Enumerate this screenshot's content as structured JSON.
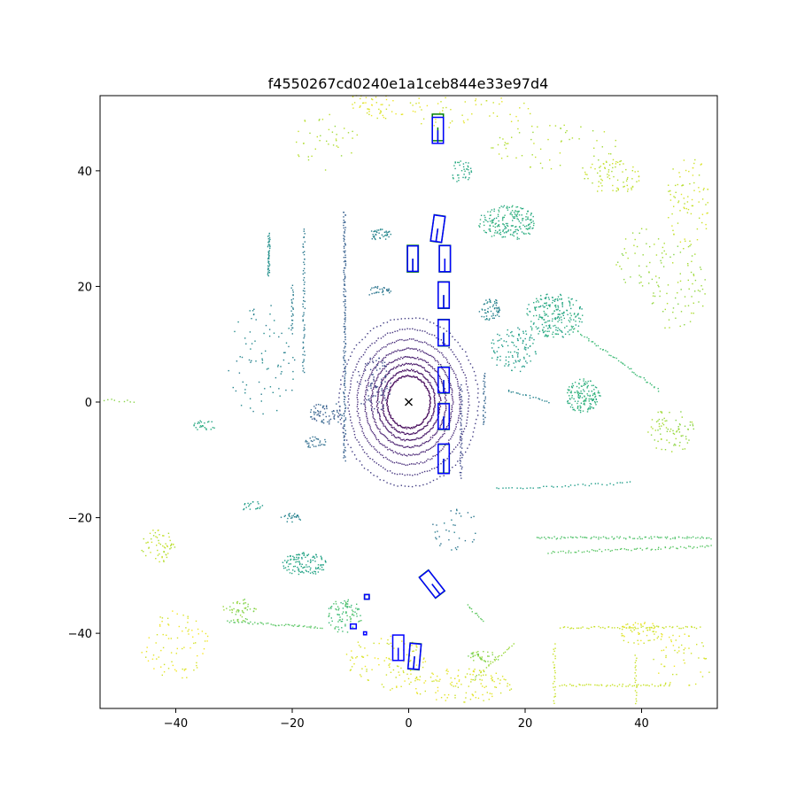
{
  "chart_data": {
    "type": "scatter",
    "title": "f4550267cd0240e1a1ceb844e33e97d4",
    "xlim": [
      -53,
      53
    ],
    "ylim": [
      -53,
      53
    ],
    "x_ticks": [
      -40,
      -20,
      0,
      20,
      40
    ],
    "y_ticks": [
      -40,
      -20,
      0,
      20,
      40
    ],
    "x_tick_labels": [
      "−40",
      "−20",
      "0",
      "20",
      "40"
    ],
    "y_tick_labels": [
      "−40",
      "−20",
      "0",
      "20",
      "40"
    ],
    "grid": false,
    "colormap": "viridis",
    "colors": {
      "gt_box": "#008000",
      "pred_box": "#0000ff",
      "ego": "#000000",
      "axes": "#000000"
    },
    "ego_marker": {
      "x": 0,
      "y": 0,
      "symbol": "x"
    },
    "ground_truth_boxes": [
      {
        "x": 5.0,
        "y": 47.5,
        "w": 1.9,
        "l": 4.6,
        "yaw_deg": 0
      },
      {
        "x": 5.0,
        "y": 30.0,
        "w": 1.9,
        "l": 4.6,
        "yaw_deg": -8
      },
      {
        "x": 6.2,
        "y": 24.8,
        "w": 1.9,
        "l": 4.6,
        "yaw_deg": 0
      },
      {
        "x": 0.7,
        "y": 24.8,
        "w": 1.9,
        "l": 4.6,
        "yaw_deg": 0
      },
      {
        "x": 6.0,
        "y": 18.5,
        "w": 1.9,
        "l": 4.6,
        "yaw_deg": 0
      },
      {
        "x": 6.0,
        "y": 12.0,
        "w": 1.9,
        "l": 4.6,
        "yaw_deg": 0
      },
      {
        "x": 6.0,
        "y": 3.8,
        "w": 1.9,
        "l": 4.5,
        "yaw_deg": 0
      },
      {
        "x": 6.0,
        "y": -2.5,
        "w": 1.9,
        "l": 4.5,
        "yaw_deg": 0
      },
      {
        "x": 6.0,
        "y": -9.8,
        "w": 1.9,
        "l": 5.0,
        "yaw_deg": 0
      },
      {
        "x": 4.0,
        "y": -31.5,
        "w": 2.0,
        "l": 4.6,
        "yaw_deg": 38
      },
      {
        "x": 1.0,
        "y": -44.0,
        "w": 1.9,
        "l": 4.5,
        "yaw_deg": -5
      },
      {
        "x": -7.2,
        "y": -33.7,
        "w": 0.8,
        "l": 0.8,
        "yaw_deg": 0
      }
    ],
    "predicted_boxes": [
      {
        "x": 5.0,
        "y": 47.0,
        "w": 1.9,
        "l": 4.5,
        "yaw_deg": 0
      },
      {
        "x": 5.0,
        "y": 30.0,
        "w": 1.9,
        "l": 4.5,
        "yaw_deg": -8
      },
      {
        "x": 6.2,
        "y": 24.8,
        "w": 1.9,
        "l": 4.5,
        "yaw_deg": 0
      },
      {
        "x": 0.7,
        "y": 24.8,
        "w": 1.8,
        "l": 4.4,
        "yaw_deg": 0
      },
      {
        "x": 6.0,
        "y": 18.5,
        "w": 1.9,
        "l": 4.5,
        "yaw_deg": 0
      },
      {
        "x": 6.0,
        "y": 12.0,
        "w": 1.9,
        "l": 4.5,
        "yaw_deg": 0
      },
      {
        "x": 6.0,
        "y": 3.8,
        "w": 1.9,
        "l": 4.4,
        "yaw_deg": 0
      },
      {
        "x": 6.0,
        "y": -2.5,
        "w": 1.9,
        "l": 4.4,
        "yaw_deg": 0
      },
      {
        "x": 6.0,
        "y": -9.8,
        "w": 1.9,
        "l": 5.1,
        "yaw_deg": 0
      },
      {
        "x": 4.0,
        "y": -31.5,
        "w": 2.0,
        "l": 4.5,
        "yaw_deg": 38
      },
      {
        "x": 1.0,
        "y": -44.0,
        "w": 1.9,
        "l": 4.4,
        "yaw_deg": -5
      },
      {
        "x": -1.8,
        "y": -42.5,
        "w": 1.9,
        "l": 4.4,
        "yaw_deg": 0
      },
      {
        "x": -7.2,
        "y": -33.7,
        "w": 0.8,
        "l": 0.8,
        "yaw_deg": 0
      },
      {
        "x": -9.5,
        "y": -38.8,
        "w": 1.0,
        "l": 0.8,
        "yaw_deg": 0
      },
      {
        "x": -7.5,
        "y": -40.0,
        "w": 0.5,
        "l": 0.5,
        "yaw_deg": 0
      }
    ],
    "point_clusters": [
      {
        "kind": "ring",
        "cx": 0,
        "cy": 0,
        "r": 4.5,
        "n": 140,
        "c": 0.02
      },
      {
        "kind": "ring",
        "cx": 0,
        "cy": 0,
        "r": 5.5,
        "n": 150,
        "c": 0.04
      },
      {
        "kind": "ring",
        "cx": 0,
        "cy": 0,
        "r": 6.6,
        "n": 160,
        "c": 0.06
      },
      {
        "kind": "ring",
        "cx": 0,
        "cy": 0,
        "r": 7.8,
        "n": 170,
        "c": 0.08
      },
      {
        "kind": "ring",
        "cx": 0,
        "cy": 0,
        "r": 9.2,
        "n": 180,
        "c": 0.1
      },
      {
        "kind": "ring",
        "cx": 0,
        "cy": 0,
        "r": 10.8,
        "n": 170,
        "c": 0.12
      },
      {
        "kind": "ring",
        "cx": 0,
        "cy": 0,
        "r": 12.6,
        "n": 150,
        "c": 0.15
      },
      {
        "kind": "ring",
        "cx": 0,
        "cy": 0,
        "r": 14.6,
        "n": 120,
        "c": 0.18
      },
      {
        "kind": "line",
        "x1": -11,
        "y1": 33,
        "x2": -11,
        "y2": -10,
        "n": 160,
        "c": 0.3
      },
      {
        "kind": "line",
        "x1": -18,
        "y1": 30,
        "x2": -18,
        "y2": 5,
        "n": 60,
        "c": 0.4
      },
      {
        "kind": "line",
        "x1": -20,
        "y1": 20,
        "x2": -20,
        "y2": 12,
        "n": 25,
        "c": 0.42
      },
      {
        "kind": "line",
        "x1": -24,
        "y1": 29,
        "x2": -24,
        "y2": 22,
        "n": 25,
        "c": 0.5
      },
      {
        "kind": "line",
        "x1": 9,
        "y1": 3,
        "x2": 9,
        "y2": -13,
        "n": 50,
        "c": 0.22
      },
      {
        "kind": "line",
        "x1": 13,
        "y1": 5,
        "x2": 13,
        "y2": -4,
        "n": 30,
        "c": 0.32
      },
      {
        "kind": "line",
        "x1": 17,
        "y1": 2,
        "x2": 24,
        "y2": 0,
        "n": 20,
        "c": 0.45
      },
      {
        "kind": "line",
        "x1": 15,
        "y1": -15,
        "x2": 38,
        "y2": -14,
        "n": 40,
        "c": 0.55
      },
      {
        "kind": "line",
        "x1": 22,
        "y1": -23.5,
        "x2": 52,
        "y2": -23.5,
        "n": 90,
        "c": 0.72
      },
      {
        "kind": "line",
        "x1": 24,
        "y1": -26,
        "x2": 52,
        "y2": -25,
        "n": 70,
        "c": 0.74
      },
      {
        "kind": "line",
        "x1": -31,
        "y1": -38,
        "x2": -15,
        "y2": -39,
        "n": 50,
        "c": 0.74
      },
      {
        "kind": "line",
        "x1": 26,
        "y1": -39,
        "x2": 50,
        "y2": -39,
        "n": 60,
        "c": 0.92
      },
      {
        "kind": "line",
        "x1": 26,
        "y1": -49,
        "x2": 45,
        "y2": -49,
        "n": 50,
        "c": 0.92
      },
      {
        "kind": "line",
        "x1": 25,
        "y1": -42,
        "x2": 25,
        "y2": -52,
        "n": 25,
        "c": 0.92
      },
      {
        "kind": "line",
        "x1": 39,
        "y1": -44,
        "x2": 39,
        "y2": -52,
        "n": 20,
        "c": 0.92
      },
      {
        "kind": "line",
        "x1": 18,
        "y1": -42,
        "x2": 11,
        "y2": -48,
        "n": 25,
        "c": 0.85
      },
      {
        "kind": "line",
        "x1": 10,
        "y1": -35,
        "x2": 13,
        "y2": -38,
        "n": 12,
        "c": 0.75
      },
      {
        "kind": "line",
        "x1": -53,
        "y1": 0.5,
        "x2": -47,
        "y2": 0,
        "n": 10,
        "c": 0.82
      },
      {
        "kind": "line",
        "x1": -24,
        "y1": 29,
        "x2": -24,
        "y2": 22,
        "n": 20,
        "c": 0.5
      },
      {
        "kind": "line",
        "x1": 28,
        "y1": 13,
        "x2": 43,
        "y2": 2,
        "n": 50,
        "c": 0.68
      },
      {
        "kind": "blob",
        "cx": 17,
        "cy": 31,
        "rx": 5,
        "ry": 3,
        "n": 200,
        "c": 0.62
      },
      {
        "kind": "blob",
        "cx": 25,
        "cy": 15,
        "rx": 5,
        "ry": 4,
        "n": 220,
        "c": 0.6
      },
      {
        "kind": "blob",
        "cx": 30,
        "cy": 1,
        "rx": 3,
        "ry": 3,
        "n": 150,
        "c": 0.63
      },
      {
        "kind": "blob",
        "cx": 18,
        "cy": 9,
        "rx": 4,
        "ry": 4,
        "n": 110,
        "c": 0.55
      },
      {
        "kind": "blob",
        "cx": 14,
        "cy": 16,
        "rx": 2,
        "ry": 2,
        "n": 60,
        "c": 0.45
      },
      {
        "kind": "blob",
        "cx": 9,
        "cy": 40,
        "rx": 2,
        "ry": 2,
        "n": 40,
        "c": 0.6
      },
      {
        "kind": "blob",
        "cx": -5,
        "cy": 29,
        "rx": 2,
        "ry": 1,
        "n": 40,
        "c": 0.45
      },
      {
        "kind": "blob",
        "cx": -5,
        "cy": 19,
        "rx": 2,
        "ry": 1,
        "n": 30,
        "c": 0.4
      },
      {
        "kind": "blob",
        "cx": -14,
        "cy": -2,
        "rx": 3,
        "ry": 2,
        "n": 70,
        "c": 0.3
      },
      {
        "kind": "blob",
        "cx": -16,
        "cy": -7,
        "rx": 2,
        "ry": 1,
        "n": 30,
        "c": 0.35
      },
      {
        "kind": "blob",
        "cx": -6,
        "cy": 3,
        "rx": 3,
        "ry": 5,
        "n": 90,
        "c": 0.22
      },
      {
        "kind": "blob",
        "cx": -18,
        "cy": -28,
        "rx": 4,
        "ry": 2,
        "n": 120,
        "c": 0.58
      },
      {
        "kind": "blob",
        "cx": -20,
        "cy": -20,
        "rx": 2,
        "ry": 1,
        "n": 25,
        "c": 0.45
      },
      {
        "kind": "blob",
        "cx": -11,
        "cy": -37,
        "rx": 3,
        "ry": 3,
        "n": 90,
        "c": 0.7
      },
      {
        "kind": "blob",
        "cx": 13,
        "cy": -44,
        "rx": 3,
        "ry": 1,
        "n": 40,
        "c": 0.82
      },
      {
        "kind": "blob",
        "cx": 9,
        "cy": -49,
        "rx": 9,
        "ry": 3,
        "n": 120,
        "c": 0.95
      },
      {
        "kind": "blob",
        "cx": -4,
        "cy": 52,
        "rx": 6,
        "ry": 3,
        "n": 70,
        "c": 0.95
      },
      {
        "kind": "blob",
        "cx": 35,
        "cy": 39,
        "rx": 5,
        "ry": 3,
        "n": 80,
        "c": 0.9
      },
      {
        "kind": "blob",
        "cx": 48,
        "cy": 35,
        "rx": 4,
        "ry": 8,
        "n": 80,
        "c": 0.92
      },
      {
        "kind": "blob",
        "cx": 46,
        "cy": 20,
        "rx": 5,
        "ry": 8,
        "n": 80,
        "c": 0.85
      },
      {
        "kind": "blob",
        "cx": 45,
        "cy": -5,
        "rx": 4,
        "ry": 4,
        "n": 80,
        "c": 0.85
      },
      {
        "kind": "blob",
        "cx": 40,
        "cy": -40,
        "rx": 4,
        "ry": 2,
        "n": 60,
        "c": 0.95
      },
      {
        "kind": "blob",
        "cx": -43,
        "cy": -25,
        "rx": 3,
        "ry": 3,
        "n": 60,
        "c": 0.9
      },
      {
        "kind": "blob",
        "cx": -40,
        "cy": -42,
        "rx": 6,
        "ry": 6,
        "n": 80,
        "c": 0.96
      },
      {
        "kind": "blob",
        "cx": -29,
        "cy": -36,
        "rx": 3,
        "ry": 2,
        "n": 50,
        "c": 0.82
      },
      {
        "kind": "blob",
        "cx": -35,
        "cy": -4,
        "rx": 2,
        "ry": 1,
        "n": 25,
        "c": 0.6
      },
      {
        "kind": "blob",
        "cx": -27,
        "cy": -18,
        "rx": 2,
        "ry": 1,
        "n": 20,
        "c": 0.55
      },
      {
        "kind": "blob",
        "cx": -4,
        "cy": -45,
        "rx": 7,
        "ry": 5,
        "n": 100,
        "c": 0.95
      },
      {
        "kind": "blob",
        "cx": 25,
        "cy": 44,
        "rx": 12,
        "ry": 4,
        "n": 60,
        "c": 0.88
      },
      {
        "kind": "blob",
        "cx": 10,
        "cy": 50,
        "rx": 12,
        "ry": 3,
        "n": 50,
        "c": 0.95
      },
      {
        "kind": "blob",
        "cx": 40,
        "cy": 25,
        "rx": 6,
        "ry": 5,
        "n": 40,
        "c": 0.85
      },
      {
        "kind": "blob",
        "cx": -14,
        "cy": 45,
        "rx": 6,
        "ry": 5,
        "n": 40,
        "c": 0.88
      },
      {
        "kind": "blob",
        "cx": -25,
        "cy": 7,
        "rx": 6,
        "ry": 10,
        "n": 80,
        "c": 0.45
      },
      {
        "kind": "blob",
        "cx": 8,
        "cy": -22,
        "rx": 4,
        "ry": 4,
        "n": 35,
        "c": 0.4
      },
      {
        "kind": "blob",
        "cx": 47,
        "cy": -45,
        "rx": 5,
        "ry": 5,
        "n": 50,
        "c": 0.95
      }
    ]
  }
}
